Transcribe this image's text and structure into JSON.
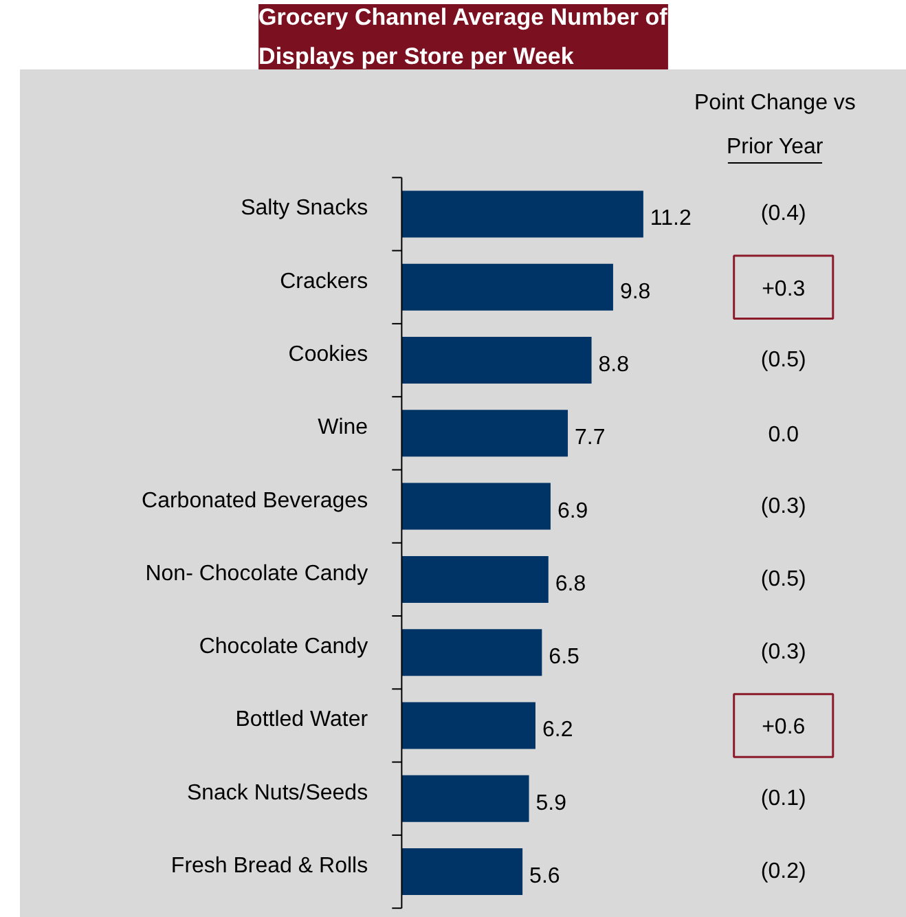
{
  "chart_data": {
    "type": "bar",
    "orientation": "horizontal",
    "title": "Grocery Channel Average Number of\nDisplays per Store per Week",
    "categories": [
      "Salty Snacks",
      "Crackers",
      "Cookies",
      "Wine",
      "Carbonated Beverages",
      "Non- Chocolate Candy",
      "Chocolate Candy",
      "Bottled Water",
      "Snack Nuts/Seeds",
      "Fresh Bread & Rolls"
    ],
    "values": [
      11.2,
      9.8,
      8.8,
      7.7,
      6.9,
      6.8,
      6.5,
      6.2,
      5.9,
      5.6
    ],
    "color": "#003366",
    "data_labels": true,
    "grid": false,
    "annotations": [
      "Point Change vs",
      "Prior Year",
      "(0.4)",
      "+0.3",
      "(0.5)",
      "0.0",
      "(0.3)",
      "(0.5)",
      "(0.3)",
      "+0.6",
      "(0.1)",
      "(0.2)"
    ]
  }
}
